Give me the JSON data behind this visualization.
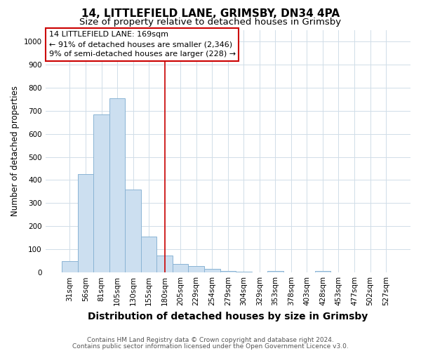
{
  "title": "14, LITTLEFIELD LANE, GRIMSBY, DN34 4PA",
  "subtitle": "Size of property relative to detached houses in Grimsby",
  "xlabel": "Distribution of detached houses by size in Grimsby",
  "ylabel": "Number of detached properties",
  "footnote1": "Contains HM Land Registry data © Crown copyright and database right 2024.",
  "footnote2": "Contains public sector information licensed under the Open Government Licence v3.0.",
  "bar_labels": [
    "31sqm",
    "56sqm",
    "81sqm",
    "105sqm",
    "130sqm",
    "155sqm",
    "180sqm",
    "205sqm",
    "229sqm",
    "254sqm",
    "279sqm",
    "304sqm",
    "329sqm",
    "353sqm",
    "378sqm",
    "403sqm",
    "428sqm",
    "453sqm",
    "477sqm",
    "502sqm",
    "527sqm"
  ],
  "bar_values": [
    50,
    425,
    685,
    755,
    360,
    155,
    72,
    38,
    27,
    15,
    8,
    5,
    0,
    8,
    0,
    0,
    8,
    0,
    0,
    0,
    0
  ],
  "bar_color": "#ccdff0",
  "bar_edge_color": "#8ab4d4",
  "grid_color": "#d0dde8",
  "annotation_line1": "14 LITTLEFIELD LANE: 169sqm",
  "annotation_line2": "← 91% of detached houses are smaller (2,346)",
  "annotation_line3": "9% of semi-detached houses are larger (228) →",
  "annotation_box_color": "#cc0000",
  "vline_x": 6.0,
  "vline_color": "#cc0000",
  "ylim": [
    0,
    1050
  ],
  "yticks": [
    0,
    100,
    200,
    300,
    400,
    500,
    600,
    700,
    800,
    900,
    1000
  ],
  "background_color": "#ffffff",
  "title_fontsize": 11,
  "subtitle_fontsize": 9.5,
  "xlabel_fontsize": 10,
  "ylabel_fontsize": 8.5,
  "tick_fontsize": 7.5,
  "annotation_fontsize": 8,
  "footnote_fontsize": 6.5
}
